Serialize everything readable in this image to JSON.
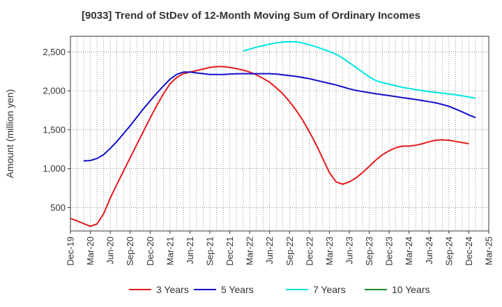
{
  "chart_data": {
    "type": "line",
    "title": "[9033]  Trend of StDev of 12-Month Moving Sum of Ordinary Incomes",
    "xlabel": "",
    "ylabel": "Amount (million yen)",
    "ylim": [
      200,
      2700
    ],
    "yticks": [
      500,
      1000,
      1500,
      2000,
      2500
    ],
    "ytick_labels": [
      "500",
      "1,000",
      "1,500",
      "2,000",
      "2,500"
    ],
    "x_start": "2019-12",
    "x_end": "2025-03",
    "xtick_labels": [
      "Dec-19",
      "Mar-20",
      "Jun-20",
      "Sep-20",
      "Dec-20",
      "Mar-21",
      "Jun-21",
      "Sep-21",
      "Dec-21",
      "Mar-22",
      "Jun-22",
      "Sep-22",
      "Dec-22",
      "Mar-23",
      "Jun-23",
      "Sep-23",
      "Dec-23",
      "Mar-24",
      "Jun-24",
      "Sep-24",
      "Dec-24",
      "Mar-25"
    ],
    "grid": true,
    "legend_position": "bottom",
    "series": [
      {
        "name": "3 Years",
        "color": "#e31a1c",
        "points": [
          [
            "2019-12",
            360
          ],
          [
            "2020-01",
            330
          ],
          [
            "2020-02",
            295
          ],
          [
            "2020-03",
            260
          ],
          [
            "2020-04",
            290
          ],
          [
            "2020-05",
            420
          ],
          [
            "2020-06",
            620
          ],
          [
            "2020-07",
            800
          ],
          [
            "2020-08",
            970
          ],
          [
            "2020-09",
            1140
          ],
          [
            "2020-10",
            1310
          ],
          [
            "2020-11",
            1480
          ],
          [
            "2020-12",
            1650
          ],
          [
            "2021-01",
            1810
          ],
          [
            "2021-02",
            1960
          ],
          [
            "2021-03",
            2090
          ],
          [
            "2021-04",
            2170
          ],
          [
            "2021-05",
            2220
          ],
          [
            "2021-06",
            2240
          ],
          [
            "2021-07",
            2260
          ],
          [
            "2021-08",
            2280
          ],
          [
            "2021-09",
            2300
          ],
          [
            "2021-10",
            2310
          ],
          [
            "2021-11",
            2310
          ],
          [
            "2021-12",
            2300
          ],
          [
            "2022-01",
            2285
          ],
          [
            "2022-02",
            2265
          ],
          [
            "2022-03",
            2240
          ],
          [
            "2022-04",
            2205
          ],
          [
            "2022-05",
            2160
          ],
          [
            "2022-06",
            2110
          ],
          [
            "2022-07",
            2040
          ],
          [
            "2022-08",
            1960
          ],
          [
            "2022-09",
            1860
          ],
          [
            "2022-10",
            1750
          ],
          [
            "2022-11",
            1620
          ],
          [
            "2022-12",
            1470
          ],
          [
            "2023-01",
            1310
          ],
          [
            "2023-02",
            1130
          ],
          [
            "2023-03",
            950
          ],
          [
            "2023-04",
            830
          ],
          [
            "2023-05",
            800
          ],
          [
            "2023-06",
            830
          ],
          [
            "2023-07",
            880
          ],
          [
            "2023-08",
            950
          ],
          [
            "2023-09",
            1030
          ],
          [
            "2023-10",
            1110
          ],
          [
            "2023-11",
            1180
          ],
          [
            "2023-12",
            1230
          ],
          [
            "2024-01",
            1270
          ],
          [
            "2024-02",
            1290
          ],
          [
            "2024-03",
            1290
          ],
          [
            "2024-04",
            1300
          ],
          [
            "2024-05",
            1320
          ],
          [
            "2024-06",
            1345
          ],
          [
            "2024-07",
            1365
          ],
          [
            "2024-08",
            1370
          ],
          [
            "2024-09",
            1365
          ],
          [
            "2024-10",
            1350
          ],
          [
            "2024-11",
            1335
          ],
          [
            "2024-12",
            1320
          ]
        ]
      },
      {
        "name": "5 Years",
        "color": "#1010c8",
        "points": [
          [
            "2020-02",
            1100
          ],
          [
            "2020-03",
            1105
          ],
          [
            "2020-04",
            1130
          ],
          [
            "2020-05",
            1180
          ],
          [
            "2020-06",
            1260
          ],
          [
            "2020-07",
            1350
          ],
          [
            "2020-08",
            1450
          ],
          [
            "2020-09",
            1550
          ],
          [
            "2020-10",
            1660
          ],
          [
            "2020-11",
            1770
          ],
          [
            "2020-12",
            1870
          ],
          [
            "2021-01",
            1970
          ],
          [
            "2021-02",
            2060
          ],
          [
            "2021-03",
            2150
          ],
          [
            "2021-04",
            2210
          ],
          [
            "2021-05",
            2240
          ],
          [
            "2021-06",
            2240
          ],
          [
            "2021-07",
            2230
          ],
          [
            "2021-08",
            2220
          ],
          [
            "2021-09",
            2210
          ],
          [
            "2021-10",
            2210
          ],
          [
            "2021-11",
            2210
          ],
          [
            "2021-12",
            2215
          ],
          [
            "2022-01",
            2218
          ],
          [
            "2022-02",
            2220
          ],
          [
            "2022-03",
            2220
          ],
          [
            "2022-04",
            2220
          ],
          [
            "2022-05",
            2220
          ],
          [
            "2022-06",
            2220
          ],
          [
            "2022-07",
            2215
          ],
          [
            "2022-08",
            2205
          ],
          [
            "2022-09",
            2195
          ],
          [
            "2022-10",
            2185
          ],
          [
            "2022-11",
            2170
          ],
          [
            "2022-12",
            2155
          ],
          [
            "2023-01",
            2135
          ],
          [
            "2023-02",
            2115
          ],
          [
            "2023-03",
            2095
          ],
          [
            "2023-04",
            2075
          ],
          [
            "2023-05",
            2050
          ],
          [
            "2023-06",
            2025
          ],
          [
            "2023-07",
            2005
          ],
          [
            "2023-08",
            1990
          ],
          [
            "2023-09",
            1975
          ],
          [
            "2023-10",
            1962
          ],
          [
            "2023-11",
            1950
          ],
          [
            "2023-12",
            1938
          ],
          [
            "2024-01",
            1925
          ],
          [
            "2024-02",
            1912
          ],
          [
            "2024-03",
            1900
          ],
          [
            "2024-04",
            1888
          ],
          [
            "2024-05",
            1875
          ],
          [
            "2024-06",
            1860
          ],
          [
            "2024-07",
            1845
          ],
          [
            "2024-08",
            1825
          ],
          [
            "2024-09",
            1800
          ],
          [
            "2024-10",
            1765
          ],
          [
            "2024-11",
            1730
          ],
          [
            "2024-12",
            1690
          ],
          [
            "2025-01",
            1655
          ]
        ]
      },
      {
        "name": "7 Years",
        "color": "#00e5e5",
        "points": [
          [
            "2022-02",
            2510
          ],
          [
            "2022-03",
            2535
          ],
          [
            "2022-04",
            2560
          ],
          [
            "2022-05",
            2580
          ],
          [
            "2022-06",
            2600
          ],
          [
            "2022-07",
            2615
          ],
          [
            "2022-08",
            2625
          ],
          [
            "2022-09",
            2630
          ],
          [
            "2022-10",
            2628
          ],
          [
            "2022-11",
            2615
          ],
          [
            "2022-12",
            2590
          ],
          [
            "2023-01",
            2565
          ],
          [
            "2023-02",
            2535
          ],
          [
            "2023-03",
            2505
          ],
          [
            "2023-04",
            2470
          ],
          [
            "2023-05",
            2420
          ],
          [
            "2023-06",
            2360
          ],
          [
            "2023-07",
            2300
          ],
          [
            "2023-08",
            2240
          ],
          [
            "2023-09",
            2180
          ],
          [
            "2023-10",
            2130
          ],
          [
            "2023-11",
            2105
          ],
          [
            "2023-12",
            2085
          ],
          [
            "2024-01",
            2065
          ],
          [
            "2024-02",
            2045
          ],
          [
            "2024-03",
            2030
          ],
          [
            "2024-04",
            2015
          ],
          [
            "2024-05",
            2002
          ],
          [
            "2024-06",
            1990
          ],
          [
            "2024-07",
            1980
          ],
          [
            "2024-08",
            1970
          ],
          [
            "2024-09",
            1960
          ],
          [
            "2024-10",
            1948
          ],
          [
            "2024-11",
            1935
          ],
          [
            "2024-12",
            1920
          ],
          [
            "2025-01",
            1905
          ]
        ]
      },
      {
        "name": "10 Years",
        "color": "#1a8a1a",
        "points": []
      }
    ]
  }
}
